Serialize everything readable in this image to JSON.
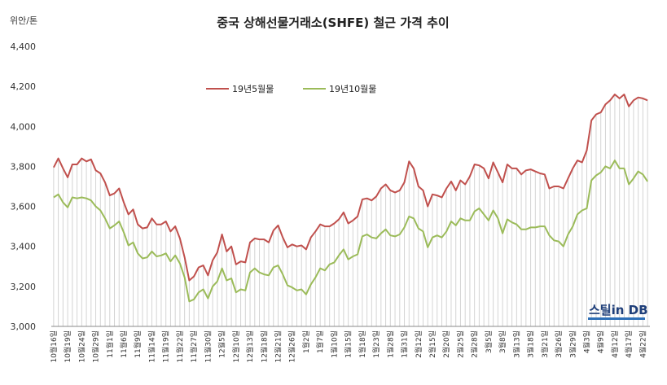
{
  "chart_data": {
    "type": "line",
    "title": "중국 상해선물거래소(SHFE) 철근 가격 추이",
    "unit_label": "위안/톤",
    "ylim": [
      3000,
      4400
    ],
    "y_ticks": [
      "3,000",
      "3,200",
      "3,400",
      "3,600",
      "3,800",
      "4,000",
      "4,200",
      "4,400"
    ],
    "legend_position": "top-left",
    "x": [
      "10월16일",
      "10월17일",
      "10월18일",
      "10월19일",
      "10월22일",
      "10월23일",
      "10월24일",
      "10월25일",
      "10월26일",
      "10월29일",
      "10월30일",
      "10월31일",
      "11월1일",
      "11월2일",
      "11월5일",
      "11월6일",
      "11월7일",
      "11월8일",
      "11월9일",
      "11월12일",
      "11월13일",
      "11월14일",
      "11월15일",
      "11월16일",
      "11월19일",
      "11월20일",
      "11월21일",
      "11월22일",
      "11월23일",
      "11월26일",
      "11월27일",
      "11월28일",
      "11월29일",
      "11월30일",
      "12월3일",
      "12월4일",
      "12월5일",
      "12월6일",
      "12월7일",
      "12월10일",
      "12월11일",
      "12월12일",
      "12월13일",
      "12월14일",
      "12월17일",
      "12월18일",
      "12월19일",
      "12월20일",
      "12월21일",
      "12월24일",
      "12월25일",
      "12월26일",
      "12월27일",
      "12월28일",
      "1월2일",
      "1월3일",
      "1월4일",
      "1월7일",
      "1월8일",
      "1월9일",
      "1월10일",
      "1월11일",
      "1월14일",
      "1월15일",
      "1월16일",
      "1월17일",
      "1월18일",
      "1월21일",
      "1월22일",
      "1월23일",
      "1월24일",
      "1월25일",
      "1월28일",
      "1월29일",
      "1월30일",
      "1월31일",
      "2월1일",
      "2월11일",
      "2월12일",
      "2월13일",
      "2월14일",
      "2월15일",
      "2월18일",
      "2월19일",
      "2월20일",
      "2월21일",
      "2월22일",
      "2월25일",
      "2월26일",
      "2월27일",
      "2월28일",
      "3월1일",
      "3월4일",
      "3월5일",
      "3월6일",
      "3월7일",
      "3월8일",
      "3월11일",
      "3월12일",
      "3월13일",
      "3월14일",
      "3월15일",
      "3월18일",
      "3월19일",
      "3월20일",
      "3월21일",
      "3월22일",
      "3월25일",
      "3월26일",
      "3월27일",
      "3월28일",
      "3월29일",
      "4월1일",
      "4월2일",
      "4월3일",
      "4월4일",
      "4월8일",
      "4월9일",
      "4월10일",
      "4월11일",
      "4월12일",
      "4월15일",
      "4월16일",
      "4월17일",
      "4월18일",
      "4월19일",
      "4월22일",
      "4월23일"
    ],
    "x_tick_labels": [
      "10월16일",
      "10월19일",
      "10월24일",
      "10월29일",
      "11월1일",
      "11월6일",
      "11월9일",
      "11월14일",
      "11월19일",
      "11월22일",
      "11월27일",
      "11월30일",
      "12월5일",
      "12월10일",
      "12월13일",
      "12월18일",
      "12월21일",
      "12월26일",
      "1월2일",
      "1월7일",
      "1월10일",
      "1월15일",
      "1월18일",
      "1월23일",
      "1월28일",
      "1월31일",
      "2월12일",
      "2월15일",
      "2월20일",
      "2월25일",
      "2월28일",
      "3월5일",
      "3월8일",
      "3월13일",
      "3월18일",
      "3월21일",
      "3월26일",
      "3월29일",
      "4월3일",
      "4월9일",
      "4월12일",
      "4월17일",
      "4월22일"
    ],
    "series": [
      {
        "name": "19년5월물",
        "color": "#c0504d",
        "values": [
          3795,
          3840,
          3790,
          3745,
          3810,
          3810,
          3840,
          3825,
          3835,
          3780,
          3765,
          3720,
          3655,
          3665,
          3690,
          3620,
          3560,
          3585,
          3510,
          3490,
          3495,
          3540,
          3510,
          3510,
          3525,
          3475,
          3500,
          3440,
          3345,
          3230,
          3250,
          3295,
          3305,
          3255,
          3330,
          3370,
          3460,
          3375,
          3400,
          3310,
          3325,
          3320,
          3420,
          3440,
          3435,
          3435,
          3420,
          3480,
          3505,
          3445,
          3395,
          3410,
          3400,
          3405,
          3385,
          3445,
          3475,
          3510,
          3500,
          3500,
          3515,
          3535,
          3570,
          3515,
          3530,
          3550,
          3635,
          3640,
          3630,
          3650,
          3690,
          3710,
          3680,
          3670,
          3680,
          3720,
          3825,
          3790,
          3700,
          3680,
          3600,
          3660,
          3655,
          3645,
          3690,
          3725,
          3680,
          3730,
          3710,
          3750,
          3810,
          3805,
          3790,
          3740,
          3820,
          3770,
          3720,
          3810,
          3790,
          3790,
          3760,
          3780,
          3785,
          3775,
          3765,
          3760,
          3690,
          3700,
          3700,
          3690,
          3740,
          3790,
          3830,
          3820,
          3880,
          4030,
          4060,
          4070,
          4110,
          4130,
          4160,
          4140,
          4160,
          4100,
          4130,
          4145,
          4140,
          4130
        ]
      },
      {
        "name": "19년10월물",
        "color": "#9bbb59",
        "values": [
          3645,
          3660,
          3620,
          3595,
          3645,
          3640,
          3645,
          3640,
          3630,
          3600,
          3580,
          3540,
          3490,
          3505,
          3525,
          3470,
          3405,
          3420,
          3365,
          3340,
          3345,
          3375,
          3350,
          3355,
          3365,
          3325,
          3355,
          3315,
          3245,
          3125,
          3135,
          3170,
          3185,
          3140,
          3200,
          3225,
          3290,
          3230,
          3240,
          3170,
          3185,
          3180,
          3270,
          3290,
          3270,
          3260,
          3255,
          3295,
          3305,
          3260,
          3205,
          3195,
          3180,
          3185,
          3160,
          3210,
          3245,
          3290,
          3280,
          3310,
          3320,
          3355,
          3385,
          3335,
          3350,
          3360,
          3450,
          3460,
          3445,
          3440,
          3465,
          3485,
          3455,
          3450,
          3460,
          3495,
          3550,
          3540,
          3490,
          3475,
          3395,
          3445,
          3455,
          3445,
          3475,
          3525,
          3505,
          3540,
          3530,
          3530,
          3575,
          3590,
          3560,
          3530,
          3580,
          3540,
          3465,
          3535,
          3520,
          3510,
          3485,
          3485,
          3495,
          3495,
          3500,
          3500,
          3455,
          3430,
          3425,
          3400,
          3460,
          3500,
          3560,
          3580,
          3590,
          3730,
          3755,
          3770,
          3800,
          3790,
          3830,
          3790,
          3790,
          3710,
          3740,
          3775,
          3760,
          3725
        ]
      }
    ]
  },
  "watermark": {
    "text": "스틸in DB"
  }
}
